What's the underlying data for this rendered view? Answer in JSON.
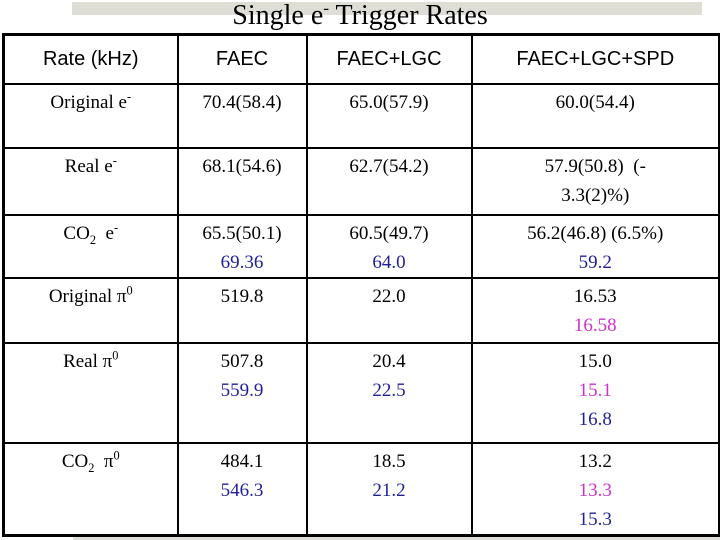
{
  "colors": {
    "black": "#000000",
    "blue": "#1f1f99",
    "magenta": "#cc33cc",
    "band": "#deded6",
    "border": "#000000"
  },
  "title": {
    "pre": "Single e",
    "sup": "-",
    "post": " Trigger Rates"
  },
  "table": {
    "columns": [
      "Rate (kHz)",
      "FAEC",
      "FAEC+LGC",
      "FAEC+LGC+SPD"
    ],
    "rows": [
      {
        "label": {
          "pre": "Original e",
          "sub": "",
          "mid": "",
          "sup": "-"
        },
        "cells": [
          [
            {
              "t": "70.4(58.4)",
              "c": "black"
            }
          ],
          [
            {
              "t": "65.0(57.9)",
              "c": "black"
            }
          ],
          [
            {
              "t": "60.0(54.4)",
              "c": "black"
            }
          ]
        ]
      },
      {
        "label": {
          "pre": "Real e",
          "sub": "",
          "mid": "",
          "sup": "-"
        },
        "cells": [
          [
            {
              "t": "68.1(54.6)",
              "c": "black"
            }
          ],
          [
            {
              "t": "62.7(54.2)",
              "c": "black"
            }
          ],
          [
            {
              "t": "57.9(50.8)  (-",
              "c": "black"
            },
            {
              "t": "3.3(2)%)",
              "c": "black"
            }
          ]
        ]
      },
      {
        "label": {
          "pre": "CO",
          "sub": "2",
          "mid": "  e",
          "sup": "-"
        },
        "cells": [
          [
            {
              "t": "65.5(50.1)",
              "c": "black"
            },
            {
              "t": "69.36",
              "c": "blue"
            }
          ],
          [
            {
              "t": "60.5(49.7)",
              "c": "black"
            },
            {
              "t": "64.0",
              "c": "blue"
            }
          ],
          [
            {
              "t": "56.2(46.8) (6.5%)",
              "c": "black"
            },
            {
              "t": "59.2",
              "c": "blue"
            }
          ]
        ]
      },
      {
        "label": {
          "pre": "Original π",
          "sub": "",
          "mid": "",
          "sup": "0"
        },
        "cells": [
          [
            {
              "t": "519.8",
              "c": "black"
            }
          ],
          [
            {
              "t": "22.0",
              "c": "black"
            }
          ],
          [
            {
              "t": "16.53",
              "c": "black"
            },
            {
              "t": "16.58",
              "c": "magenta"
            }
          ]
        ]
      },
      {
        "label": {
          "pre": "Real π",
          "sub": "",
          "mid": "",
          "sup": "0"
        },
        "cells": [
          [
            {
              "t": "507.8",
              "c": "black"
            },
            {
              "t": "559.9",
              "c": "blue"
            }
          ],
          [
            {
              "t": "20.4",
              "c": "black"
            },
            {
              "t": "22.5",
              "c": "blue"
            }
          ],
          [
            {
              "t": "15.0",
              "c": "black"
            },
            {
              "t": "15.1",
              "c": "magenta"
            },
            {
              "t": "16.8",
              "c": "blue"
            }
          ]
        ]
      },
      {
        "label": {
          "pre": "CO",
          "sub": "2",
          "mid": "  π",
          "sup": "0"
        },
        "cells": [
          [
            {
              "t": "484.1",
              "c": "black"
            },
            {
              "t": "546.3",
              "c": "blue"
            }
          ],
          [
            {
              "t": "18.5",
              "c": "black"
            },
            {
              "t": "21.2",
              "c": "blue"
            }
          ],
          [
            {
              "t": "13.2",
              "c": "black"
            },
            {
              "t": "13.3",
              "c": "magenta"
            },
            {
              "t": "15.3",
              "c": "blue"
            }
          ]
        ]
      }
    ]
  }
}
